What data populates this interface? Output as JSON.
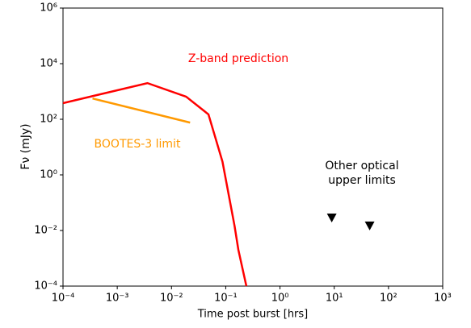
{
  "chart_data": {
    "type": "line",
    "x_label": "Time post burst [hrs]",
    "y_label": "Fν  (mJy)",
    "xscale": "log",
    "yscale": "log",
    "xlim": [
      0.0001,
      1000
    ],
    "ylim": [
      0.0001,
      1000000
    ],
    "xticks": [
      {
        "value": 0.0001,
        "label": "10⁻⁴"
      },
      {
        "value": 0.001,
        "label": "10⁻³"
      },
      {
        "value": 0.01,
        "label": "10⁻²"
      },
      {
        "value": 0.1,
        "label": "10⁻¹"
      },
      {
        "value": 1,
        "label": "10⁰"
      },
      {
        "value": 10,
        "label": "10¹"
      },
      {
        "value": 100,
        "label": "10²"
      },
      {
        "value": 1000,
        "label": "10³"
      }
    ],
    "yticks": [
      {
        "value": 0.0001,
        "label": "10⁻⁴"
      },
      {
        "value": 0.01,
        "label": "10⁻²"
      },
      {
        "value": 1,
        "label": "10⁰"
      },
      {
        "value": 100,
        "label": "10²"
      },
      {
        "value": 10000,
        "label": "10⁴"
      },
      {
        "value": 1000000,
        "label": "10⁶"
      }
    ],
    "series": [
      {
        "name": "Z-band prediction",
        "color": "#ff0000",
        "kind": "line",
        "x": [
          0.0001,
          0.0036,
          0.0186,
          0.048,
          0.087,
          0.145,
          0.171,
          0.24
        ],
        "values": [
          380,
          2000,
          650,
          150,
          3,
          0.015,
          0.002,
          0.0001
        ]
      },
      {
        "name": "BOOTES-3 limit",
        "color": "#ff9900",
        "kind": "line",
        "x": [
          0.00035,
          0.022
        ],
        "values": [
          560,
          76
        ]
      },
      {
        "name": "Other optical upper limits",
        "color": "#000000",
        "kind": "marker",
        "x": [
          9,
          45
        ],
        "values": [
          0.029,
          0.015
        ]
      }
    ]
  }
}
